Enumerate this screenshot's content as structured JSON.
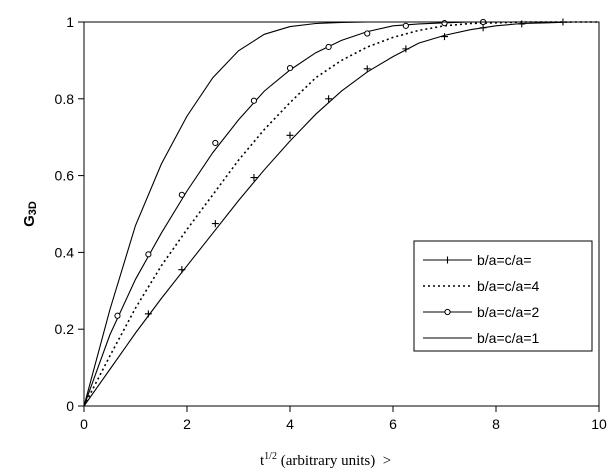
{
  "chart_data": {
    "type": "line",
    "xlabel": "t",
    "xlabel_sup": "1/2",
    "xlabel_suffix": " (arbitrary units)  >",
    "ylabel": "G",
    "ylabel_sub": "3D",
    "xlim": [
      0,
      10
    ],
    "ylim": [
      0,
      1
    ],
    "xticks": [
      0,
      2,
      4,
      6,
      8,
      10
    ],
    "yticks": [
      0,
      0.2,
      0.4,
      0.6,
      0.8,
      1
    ],
    "ytick_labels": [
      "0",
      "0.2",
      "0.4",
      "0.6",
      "0.8",
      "1"
    ],
    "grid": false,
    "legend_position": "center-right",
    "series": [
      {
        "name": "b/a=c/a=",
        "style": "plus-markers",
        "color": "#000000",
        "x": [
          0,
          0.5,
          1.0,
          1.5,
          2.0,
          2.5,
          3.0,
          3.5,
          4.0,
          4.5,
          5.0,
          5.5,
          6.0,
          6.5,
          7.0,
          7.5,
          8.0,
          8.5,
          9.0,
          9.5,
          10.0
        ],
        "y": [
          0,
          0.095,
          0.19,
          0.28,
          0.365,
          0.45,
          0.535,
          0.615,
          0.69,
          0.76,
          0.82,
          0.87,
          0.91,
          0.945,
          0.965,
          0.98,
          0.99,
          0.996,
          0.998,
          1.0,
          1.0
        ],
        "markers_x": [
          1.25,
          1.9,
          2.55,
          3.3,
          4.0,
          4.75,
          5.5,
          6.25,
          7.0,
          7.75,
          8.5,
          9.3
        ],
        "markers_y": [
          0.24,
          0.355,
          0.475,
          0.595,
          0.705,
          0.8,
          0.878,
          0.93,
          0.962,
          0.985,
          0.995,
          1.0
        ]
      },
      {
        "name": "b/a=c/a=4",
        "style": "dotted",
        "color": "#000000",
        "x": [
          0,
          0.5,
          1.0,
          1.5,
          2.0,
          2.5,
          3.0,
          3.5,
          4.0,
          4.5,
          5.0,
          5.5,
          6.0,
          6.5,
          7.0,
          7.5,
          8.0,
          8.5,
          9.0,
          10.0
        ],
        "y": [
          0,
          0.13,
          0.255,
          0.365,
          0.46,
          0.55,
          0.64,
          0.72,
          0.79,
          0.855,
          0.9,
          0.935,
          0.96,
          0.978,
          0.99,
          0.996,
          0.998,
          1.0,
          1.0,
          1.0
        ]
      },
      {
        "name": "b/a=c/a=2",
        "style": "circle-markers",
        "color": "#000000",
        "x": [
          0,
          0.5,
          1.0,
          1.5,
          2.0,
          2.5,
          3.0,
          3.5,
          4.0,
          4.5,
          5.0,
          5.5,
          6.0,
          6.5,
          7.0,
          7.5,
          8.0,
          9.0,
          10.0
        ],
        "y": [
          0,
          0.185,
          0.33,
          0.45,
          0.56,
          0.66,
          0.745,
          0.82,
          0.875,
          0.92,
          0.952,
          0.975,
          0.99,
          0.995,
          0.998,
          1.0,
          1.0,
          1.0,
          1.0
        ],
        "markers_x": [
          0.65,
          1.25,
          1.9,
          2.55,
          3.3,
          4.0,
          4.75,
          5.5,
          6.25,
          7.0,
          7.75
        ],
        "markers_y": [
          0.235,
          0.395,
          0.55,
          0.685,
          0.795,
          0.88,
          0.935,
          0.97,
          0.99,
          0.997,
          1.0
        ]
      },
      {
        "name": "b/a=c/a=1",
        "style": "solid",
        "color": "#000000",
        "x": [
          0,
          0.5,
          1.0,
          1.5,
          2.0,
          2.5,
          3.0,
          3.5,
          4.0,
          4.5,
          5.0,
          5.5,
          6.0,
          7.0,
          8.0,
          9.0,
          10.0
        ],
        "y": [
          0,
          0.25,
          0.47,
          0.63,
          0.755,
          0.855,
          0.925,
          0.968,
          0.988,
          0.996,
          0.999,
          1.0,
          1.0,
          1.0,
          1.0,
          1.0,
          1.0
        ]
      }
    ]
  }
}
